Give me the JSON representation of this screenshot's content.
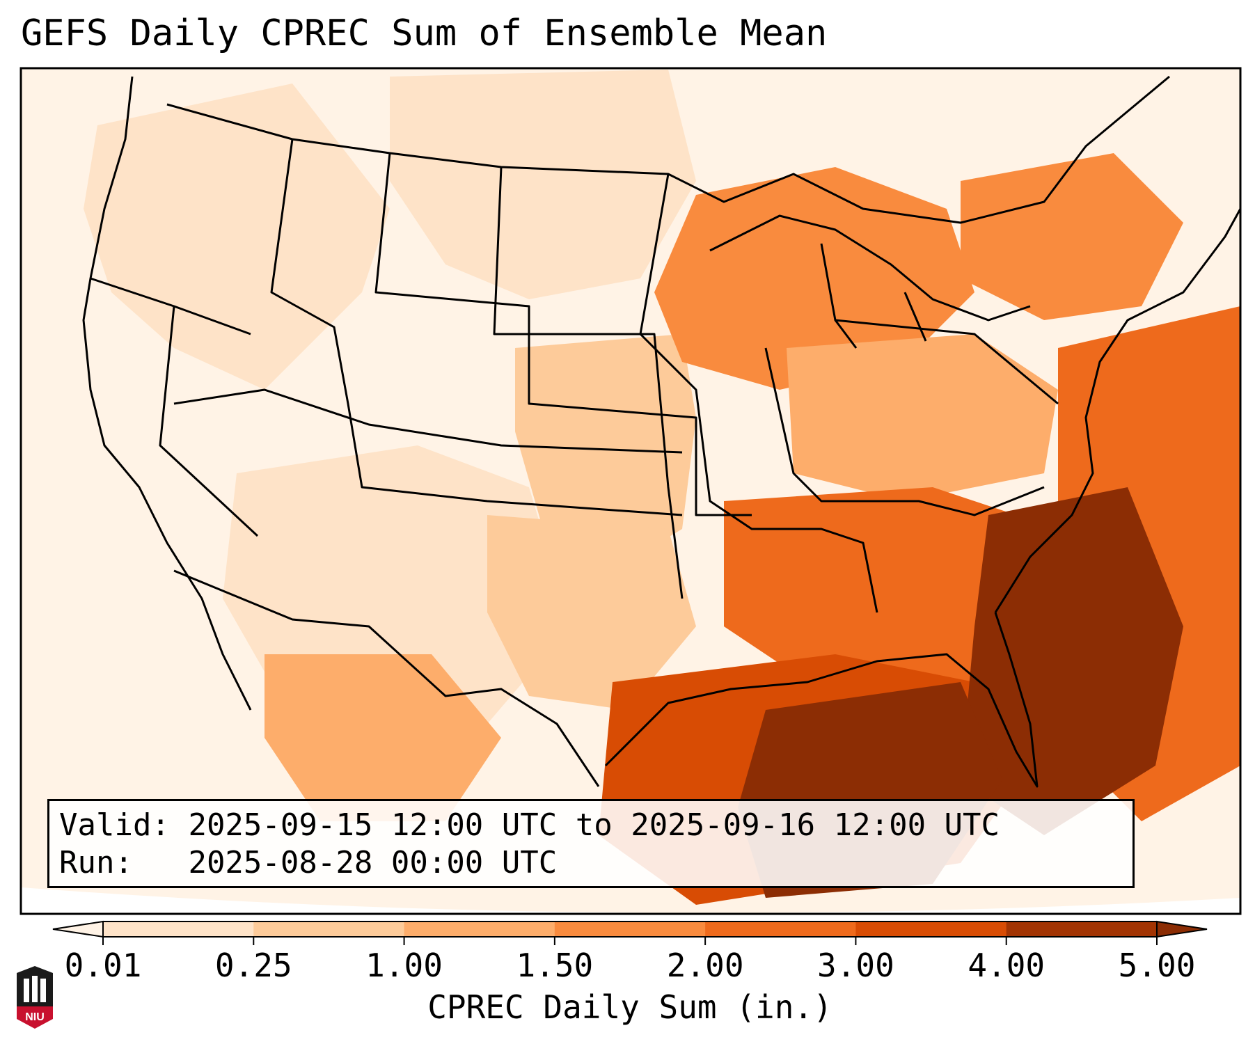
{
  "title": "GEFS Daily CPREC Sum of Ensemble Mean",
  "info": {
    "valid_label": "Valid:",
    "valid_value": "2025-09-15 12:00 UTC to 2025-09-16 12:00 UTC",
    "run_label": "Run:",
    "run_value": "2025-08-28 00:00 UTC"
  },
  "colorbar": {
    "title": "CPREC Daily Sum (in.)",
    "ticks": [
      "0.01",
      "0.25",
      "1.00",
      "1.50",
      "2.00",
      "3.00",
      "4.00",
      "5.00"
    ],
    "colors": [
      "#fff3e6",
      "#fee3c8",
      "#fdcb9a",
      "#fdad6b",
      "#f98b3e",
      "#ee6a1c",
      "#d84c04",
      "#a23403",
      "#8c2d04"
    ],
    "extend": "both"
  },
  "logo": {
    "text": "NIU"
  },
  "map": {
    "domain": "Continental United States",
    "colors": {
      "c1": "#fff3e6",
      "c2": "#fee3c8",
      "c3": "#fdcb9a",
      "c4": "#fdad6b",
      "c5": "#f98b3e",
      "c6": "#ee6a1c",
      "c7": "#d84c04",
      "c8": "#8c2d04"
    }
  }
}
